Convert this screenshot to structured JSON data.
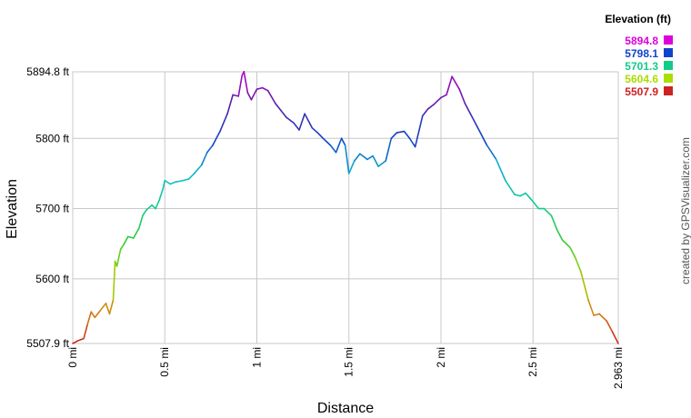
{
  "chart_data": {
    "type": "line",
    "xlabel": "Distance",
    "ylabel": "Elevation",
    "xlim": [
      0,
      2.963
    ],
    "ylim": [
      5507.9,
      5894.8
    ],
    "x_ticks": [
      {
        "value": 0,
        "label": "0 mi"
      },
      {
        "value": 0.5,
        "label": "0.5 mi"
      },
      {
        "value": 1,
        "label": "1 mi"
      },
      {
        "value": 1.5,
        "label": "1.5 mi"
      },
      {
        "value": 2,
        "label": "2 mi"
      },
      {
        "value": 2.5,
        "label": "2.5 mi"
      },
      {
        "value": 2.963,
        "label": "2.963 mi"
      }
    ],
    "y_ticks": [
      {
        "value": 5507.9,
        "label": "5507.9 ft"
      },
      {
        "value": 5600,
        "label": "5600 ft"
      },
      {
        "value": 5700,
        "label": "5700 ft"
      },
      {
        "value": 5800,
        "label": "5800 ft"
      },
      {
        "value": 5894.8,
        "label": "5894.8 ft"
      }
    ],
    "grid": true,
    "legend": {
      "title": "Elevation (ft)",
      "placement": "top-right",
      "entries": [
        {
          "label": "5894.8",
          "color": "#dd00dd"
        },
        {
          "label": "5798.1",
          "color": "#1144cc"
        },
        {
          "label": "5701.3",
          "color": "#11cc88"
        },
        {
          "label": "5604.6",
          "color": "#aadd00"
        },
        {
          "label": "5507.9",
          "color": "#cc2222"
        }
      ]
    },
    "color_stops": [
      {
        "value": 5507.9,
        "color": "#cc2222"
      },
      {
        "value": 5556.3,
        "color": "#d08a10"
      },
      {
        "value": 5604.6,
        "color": "#9ad500"
      },
      {
        "value": 5653.0,
        "color": "#33cc33"
      },
      {
        "value": 5701.3,
        "color": "#11cc88"
      },
      {
        "value": 5750.0,
        "color": "#11bbcc"
      },
      {
        "value": 5798.1,
        "color": "#1144cc"
      },
      {
        "value": 5846.5,
        "color": "#5522aa"
      },
      {
        "value": 5894.8,
        "color": "#bb00cc"
      }
    ],
    "series": [
      {
        "x": [
          0,
          0.03,
          0.06,
          0.08,
          0.1,
          0.12,
          0.15,
          0.18,
          0.2,
          0.22,
          0.23,
          0.24,
          0.26,
          0.28,
          0.3,
          0.33,
          0.36,
          0.38,
          0.4,
          0.43,
          0.45,
          0.47,
          0.49,
          0.5,
          0.53,
          0.56,
          0.6,
          0.63,
          0.66,
          0.7,
          0.73,
          0.76,
          0.8,
          0.84,
          0.87,
          0.9,
          0.92,
          0.93,
          0.95,
          0.97,
          1.0,
          1.03,
          1.06,
          1.1,
          1.13,
          1.16,
          1.2,
          1.23,
          1.26,
          1.3,
          1.33,
          1.36,
          1.4,
          1.43,
          1.46,
          1.48,
          1.5,
          1.53,
          1.56,
          1.6,
          1.63,
          1.66,
          1.7,
          1.73,
          1.76,
          1.8,
          1.83,
          1.86,
          1.9,
          1.93,
          1.96,
          2.0,
          2.03,
          2.06,
          2.1,
          2.13,
          2.16,
          2.2,
          2.25,
          2.3,
          2.35,
          2.4,
          2.43,
          2.46,
          2.5,
          2.53,
          2.56,
          2.6,
          2.63,
          2.66,
          2.7,
          2.73,
          2.76,
          2.8,
          2.83,
          2.86,
          2.9,
          2.93,
          2.963
        ],
        "y": [
          5507.9,
          5512,
          5515,
          5535,
          5553,
          5545,
          5555,
          5565,
          5550,
          5570,
          5625,
          5618,
          5642,
          5650,
          5660,
          5658,
          5672,
          5690,
          5698,
          5705,
          5700,
          5712,
          5728,
          5740,
          5735,
          5738,
          5740,
          5742,
          5750,
          5762,
          5780,
          5790,
          5810,
          5835,
          5862,
          5860,
          5890,
          5895,
          5865,
          5855,
          5870,
          5872,
          5868,
          5850,
          5840,
          5830,
          5822,
          5812,
          5835,
          5815,
          5808,
          5800,
          5790,
          5780,
          5800,
          5790,
          5750,
          5768,
          5778,
          5770,
          5775,
          5760,
          5768,
          5800,
          5808,
          5810,
          5800,
          5788,
          5832,
          5842,
          5848,
          5858,
          5862,
          5888,
          5870,
          5850,
          5835,
          5815,
          5790,
          5770,
          5740,
          5720,
          5718,
          5722,
          5710,
          5700,
          5700,
          5690,
          5670,
          5655,
          5645,
          5630,
          5610,
          5570,
          5548,
          5550,
          5540,
          5525,
          5507.9
        ]
      }
    ],
    "credit": "created by GPSVisualizer.com"
  }
}
